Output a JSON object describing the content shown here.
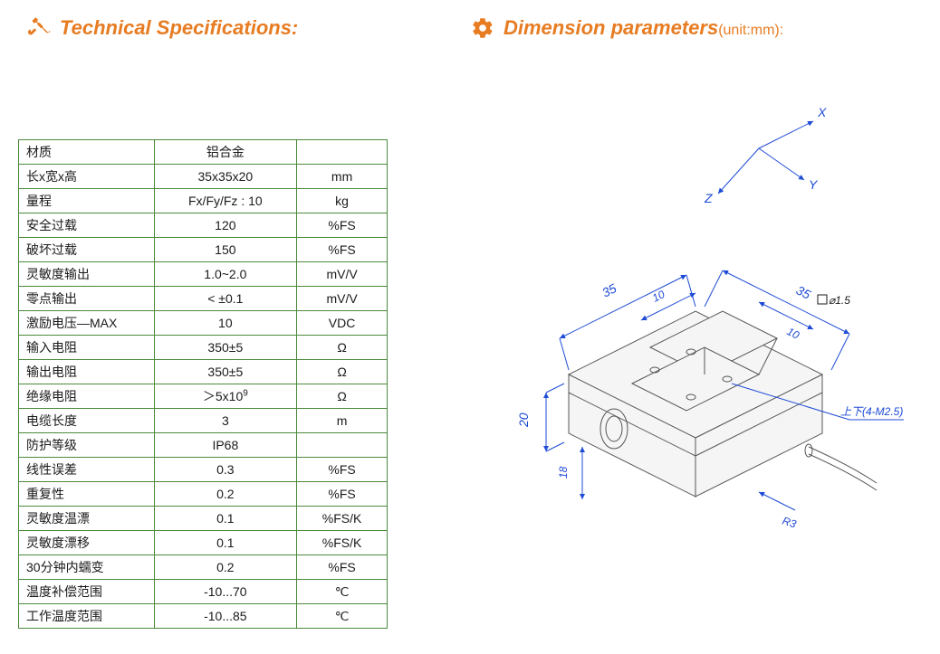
{
  "headings": {
    "tech_spec": "Technical Specifications:",
    "dim_params": "Dimension parameters",
    "dim_unit": "(unit:mm):"
  },
  "spec_table": {
    "rows": [
      {
        "param": "材质",
        "value": "铝合金",
        "unit": ""
      },
      {
        "param": "长x宽x高",
        "value": "35x35x20",
        "unit": "mm"
      },
      {
        "param": "量程",
        "value": "Fx/Fy/Fz : 10",
        "unit": "kg"
      },
      {
        "param": "安全过载",
        "value": "120",
        "unit": "%FS"
      },
      {
        "param": "破坏过载",
        "value": "150",
        "unit": "%FS"
      },
      {
        "param": "灵敏度输出",
        "value": "1.0~2.0",
        "unit": "mV/V"
      },
      {
        "param": "零点输出",
        "value": "< ±0.1",
        "unit": "mV/V"
      },
      {
        "param": "激励电压—MAX",
        "value": "10",
        "unit": "VDC"
      },
      {
        "param": "输入电阻",
        "value": "350±5",
        "unit": "Ω"
      },
      {
        "param": "输出电阻",
        "value": "350±5",
        "unit": "Ω"
      },
      {
        "param": "绝缘电阻",
        "value": "＞5x10⁹",
        "unit": "Ω"
      },
      {
        "param": "电缆长度",
        "value": "3",
        "unit": "m"
      },
      {
        "param": "防护等级",
        "value": "IP68",
        "unit": ""
      },
      {
        "param": "线性误差",
        "value": "0.3",
        "unit": "%FS"
      },
      {
        "param": "重复性",
        "value": "0.2",
        "unit": "%FS"
      },
      {
        "param": "灵敏度温漂",
        "value": "0.1",
        "unit": "%FS/K"
      },
      {
        "param": "灵敏度漂移",
        "value": "0.1",
        "unit": "%FS/K"
      },
      {
        "param": "30分钟内蠕变",
        "value": "0.2",
        "unit": "%FS"
      },
      {
        "param": "温度补偿范围",
        "value": "-10...70",
        "unit": "℃"
      },
      {
        "param": "工作温度范围",
        "value": "-10...85",
        "unit": "℃"
      }
    ]
  },
  "diagram": {
    "type": "isometric-technical-drawing",
    "axes": {
      "x": "X",
      "y": "Y",
      "z": "Z"
    },
    "colors": {
      "dimension_line": "#1e4bd6",
      "part_outline": "#555555",
      "part_fill": "#f5f5f5",
      "background": "#ffffff"
    },
    "line_width": 1,
    "font_style": "italic",
    "font_size_main": 14,
    "font_size_small": 12,
    "dimensions": {
      "length_35_a": "35",
      "length_35_b": "35",
      "inner_10_a": "10",
      "inner_10_b": "10",
      "hole_label": "⌀1.5",
      "height_20": "20",
      "height_18": "18",
      "radius_r3": "R3",
      "thread_label": "上下(4-M2.5)"
    }
  }
}
